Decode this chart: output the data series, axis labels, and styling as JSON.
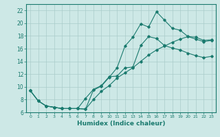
{
  "title": "",
  "xlabel": "Humidex (Indice chaleur)",
  "ylabel": "",
  "bg_color": "#cde8e6",
  "grid_color": "#aaccca",
  "line_color": "#1a7a6e",
  "xlim": [
    -0.5,
    23.5
  ],
  "ylim": [
    6,
    23
  ],
  "xticks": [
    0,
    1,
    2,
    3,
    4,
    5,
    6,
    7,
    8,
    9,
    10,
    11,
    12,
    13,
    14,
    15,
    16,
    17,
    18,
    19,
    20,
    21,
    22,
    23
  ],
  "yticks": [
    6,
    8,
    10,
    12,
    14,
    16,
    18,
    20,
    22
  ],
  "line1_x": [
    0,
    1,
    2,
    3,
    4,
    5,
    6,
    7,
    8,
    9,
    10,
    11,
    12,
    13,
    14,
    15,
    16,
    17,
    18,
    19,
    20,
    21,
    22,
    23
  ],
  "line1_y": [
    9.4,
    7.8,
    7.0,
    6.8,
    6.6,
    6.6,
    6.6,
    6.5,
    9.5,
    10.1,
    11.5,
    13.0,
    16.4,
    17.8,
    19.9,
    19.4,
    21.8,
    20.5,
    19.2,
    18.9,
    17.9,
    17.5,
    17.1,
    17.3
  ],
  "line2_x": [
    0,
    1,
    2,
    3,
    4,
    5,
    6,
    7,
    8,
    9,
    10,
    11,
    12,
    13,
    14,
    15,
    16,
    17,
    18,
    19,
    20,
    21,
    22,
    23
  ],
  "line2_y": [
    9.4,
    7.8,
    7.0,
    6.8,
    6.6,
    6.6,
    6.6,
    8.2,
    9.6,
    10.2,
    11.6,
    11.7,
    13.0,
    13.1,
    16.5,
    17.9,
    17.6,
    16.5,
    16.1,
    15.8,
    15.3,
    14.9,
    14.6,
    14.8
  ],
  "line3_x": [
    0,
    1,
    2,
    3,
    4,
    5,
    6,
    7,
    8,
    9,
    10,
    11,
    12,
    13,
    14,
    15,
    16,
    17,
    18,
    19,
    20,
    21,
    22,
    23
  ],
  "line3_y": [
    9.4,
    7.8,
    7.0,
    6.8,
    6.6,
    6.6,
    6.6,
    6.5,
    8.0,
    9.3,
    10.2,
    11.4,
    12.2,
    13.0,
    14.0,
    15.0,
    15.8,
    16.4,
    17.0,
    17.5,
    17.9,
    17.8,
    17.3,
    17.4
  ]
}
